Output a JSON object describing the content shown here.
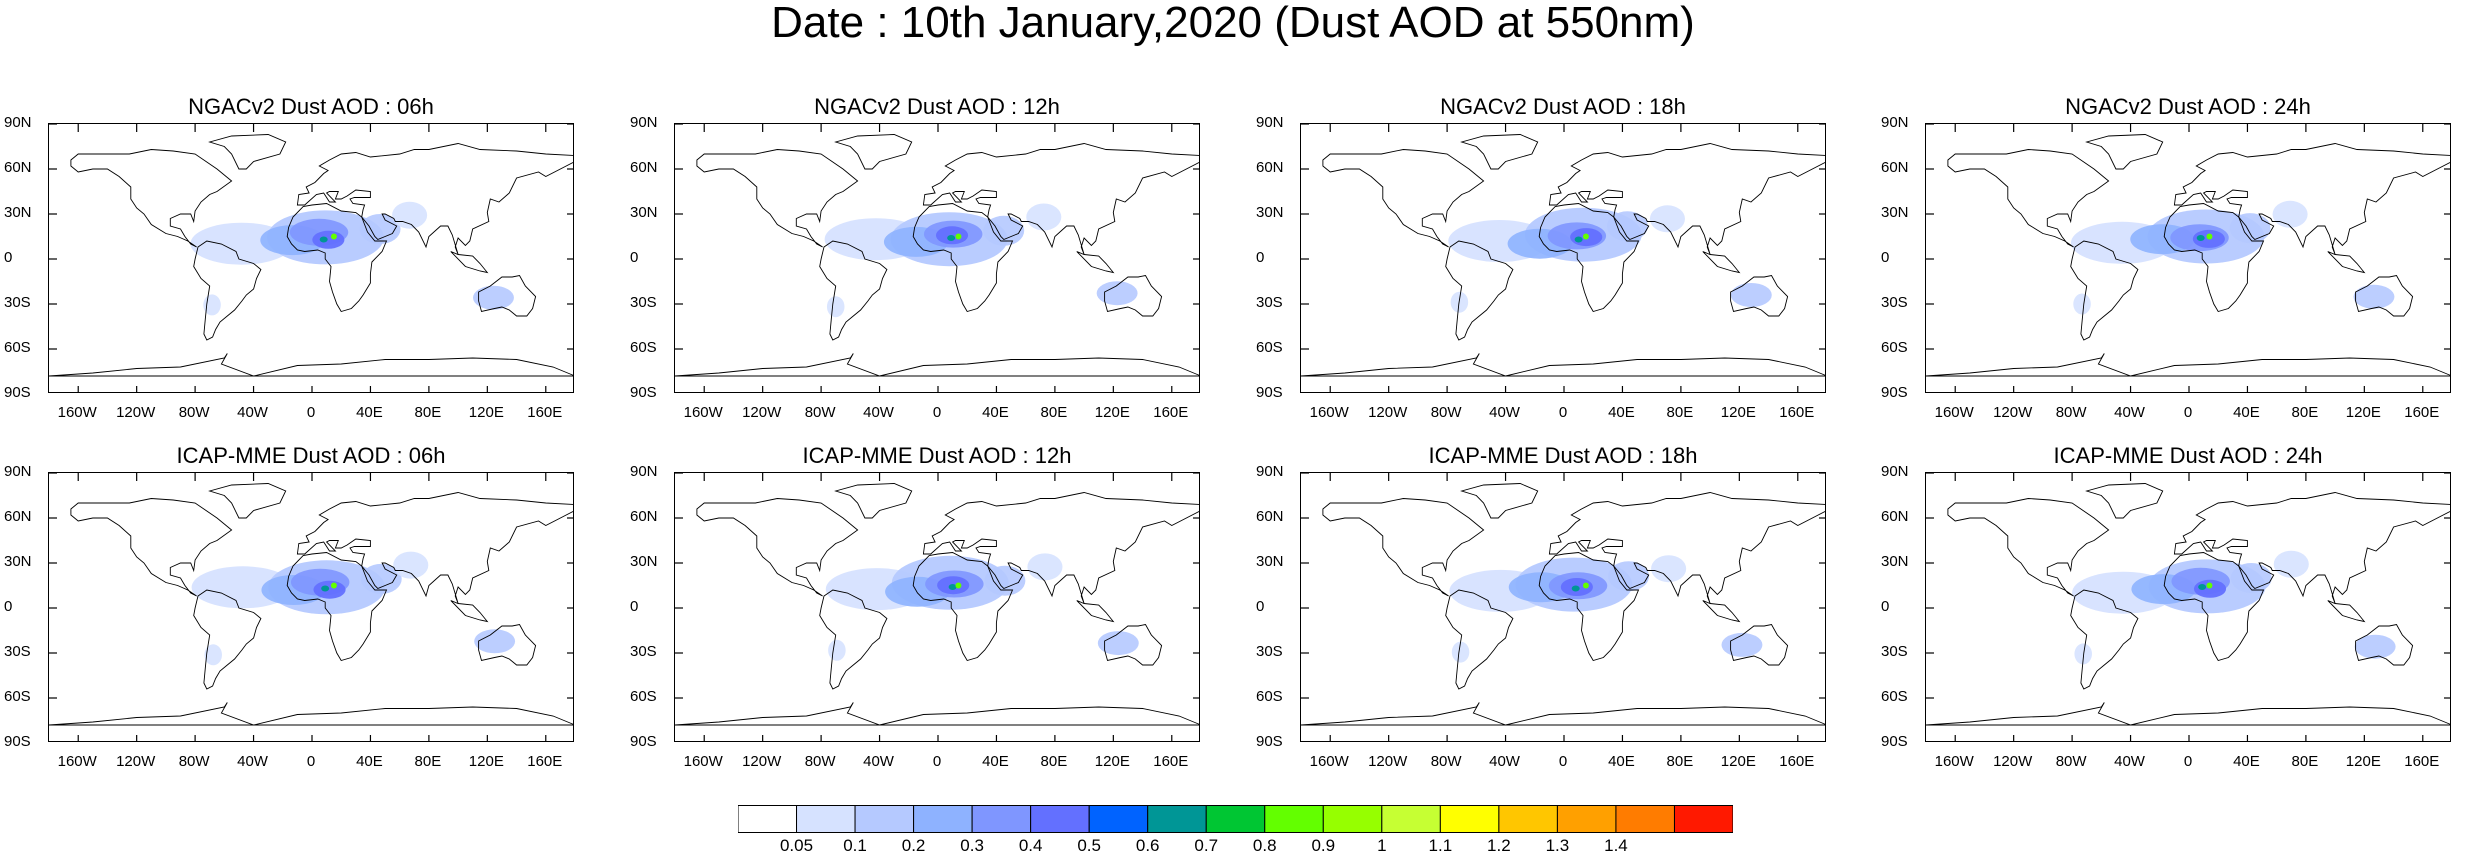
{
  "title": "Date : 10th January,2020 (Dust AOD at 550nm)",
  "lat_ticks": [
    "90N",
    "60N",
    "30N",
    "0",
    "30S",
    "60S",
    "90S"
  ],
  "lon_ticks": [
    "160W",
    "120W",
    "80W",
    "40W",
    "0",
    "40E",
    "80E",
    "120E",
    "160E"
  ],
  "panels": [
    {
      "title": "NGACv2 Dust AOD : 06h",
      "variant": 0
    },
    {
      "title": "NGACv2 Dust AOD : 12h",
      "variant": 1
    },
    {
      "title": "NGACv2 Dust AOD : 18h",
      "variant": 2
    },
    {
      "title": "NGACv2 Dust AOD : 24h",
      "variant": 3
    },
    {
      "title": "ICAP-MME Dust AOD : 06h",
      "variant": 4
    },
    {
      "title": "ICAP-MME Dust AOD : 12h",
      "variant": 5
    },
    {
      "title": "ICAP-MME Dust AOD : 18h",
      "variant": 6
    },
    {
      "title": "ICAP-MME Dust AOD : 24h",
      "variant": 7
    }
  ],
  "colorbar": {
    "labels": [
      "0.05",
      "0.1",
      "0.2",
      "0.3",
      "0.4",
      "0.5",
      "0.6",
      "0.7",
      "0.8",
      "0.9",
      "1",
      "1.1",
      "1.2",
      "1.3",
      "1.4"
    ],
    "colors": [
      "#ffffff",
      "#d6e2ff",
      "#b5c9ff",
      "#8eb2ff",
      "#7f96ff",
      "#6370ff",
      "#0063ff",
      "#009696",
      "#00c633",
      "#63ff00",
      "#96ff00",
      "#c6ff33",
      "#ffff00",
      "#ffc600",
      "#ffa000",
      "#ff7c00",
      "#ff1900"
    ]
  },
  "colors": {
    "land_outline": "#000000",
    "background": "#ffffff"
  }
}
